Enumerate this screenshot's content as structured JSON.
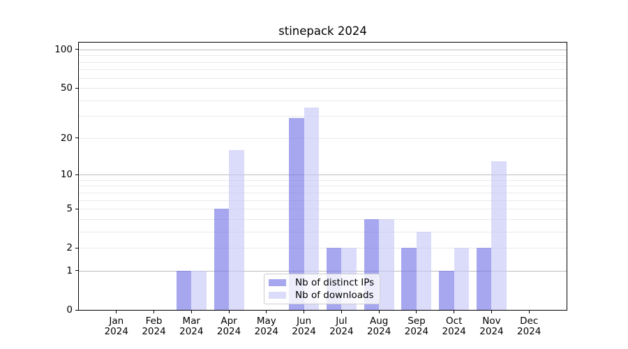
{
  "chart_data": {
    "type": "bar",
    "title": "stinepack 2024",
    "categories": [
      "Jan 2024",
      "Feb 2024",
      "Mar 2024",
      "Apr 2024",
      "May 2024",
      "Jun 2024",
      "Jul 2024",
      "Aug 2024",
      "Sep 2024",
      "Oct 2024",
      "Nov 2024",
      "Dec 2024"
    ],
    "series": [
      {
        "name": "Nb of distinct IPs",
        "color": "#a7a7f0",
        "fill": "rgba(116,116,232,0.63)",
        "values": [
          0,
          0,
          1,
          5,
          0,
          29,
          2,
          4,
          2,
          1,
          2,
          0
        ]
      },
      {
        "name": "Nb of downloads",
        "color": "#dbdbfa",
        "fill": "rgba(198,198,247,0.63)",
        "values": [
          0,
          0,
          1,
          16,
          0,
          35,
          2,
          4,
          3,
          2,
          13,
          0
        ]
      }
    ],
    "yscale": "log1p",
    "ylim": [
      0,
      113
    ],
    "yticks": [
      0,
      1,
      2,
      5,
      10,
      20,
      50,
      100
    ],
    "grid": {
      "major": [
        1,
        10,
        100
      ],
      "minor": [
        2,
        3,
        4,
        5,
        6,
        7,
        8,
        9,
        20,
        30,
        40,
        50,
        60,
        70,
        80,
        90
      ],
      "major_color": "#bcbcbc",
      "minor_color": "#e9e9e9"
    },
    "legend": {
      "position": "lower center"
    }
  }
}
